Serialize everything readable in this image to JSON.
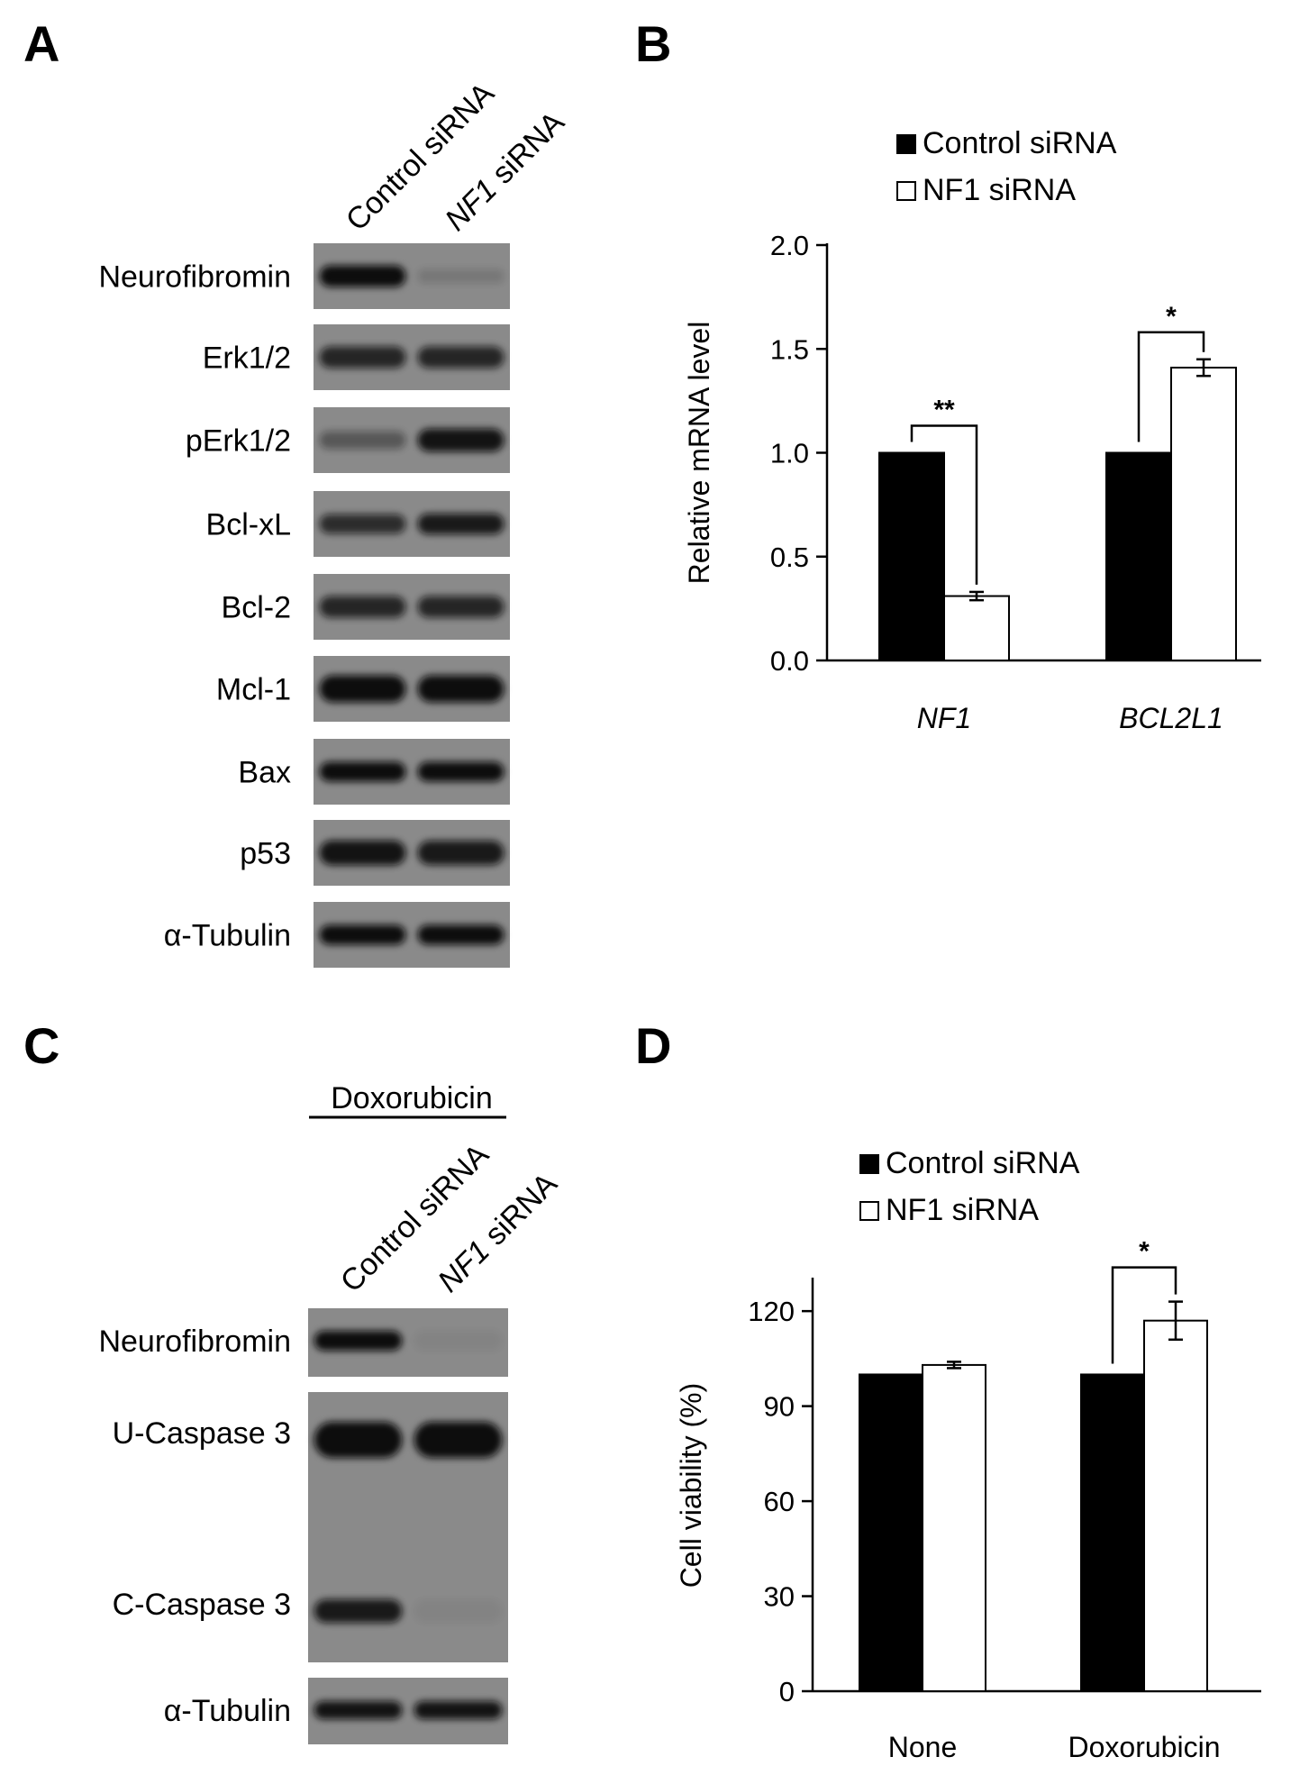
{
  "panels": {
    "A": {
      "letter": "A",
      "lanes": [
        {
          "text": "Control siRNA",
          "italic_part": ""
        },
        {
          "text": " siRNA",
          "italic_part": "NF1"
        }
      ],
      "blots": [
        {
          "label": "Neurofibromin",
          "lane1": 1.0,
          "lane2": 0.15
        },
        {
          "label": "Erk1/2",
          "lane1": 0.8,
          "lane2": 0.8
        },
        {
          "label": "pErk1/2",
          "lane1": 0.4,
          "lane2": 0.95
        },
        {
          "label": "Bcl-xL",
          "lane1": 0.75,
          "lane2": 0.9
        },
        {
          "label": "Bcl-2",
          "lane1": 0.8,
          "lane2": 0.8
        },
        {
          "label": "Mcl-1",
          "lane1": 1.0,
          "lane2": 1.0
        },
        {
          "label": "Bax",
          "lane1": 1.0,
          "lane2": 1.0
        },
        {
          "label": "p53",
          "lane1": 0.95,
          "lane2": 0.9
        },
        {
          "label": "α-Tubulin",
          "lane1": 1.0,
          "lane2": 1.0
        }
      ]
    },
    "B": {
      "letter": "B"
    },
    "C": {
      "letter": "C",
      "treatment": "Doxorubicin",
      "lanes": [
        {
          "text": "Control siRNA",
          "italic_part": ""
        },
        {
          "text": " siRNA",
          "italic_part": "NF1"
        }
      ],
      "blots": [
        {
          "label": "Neurofibromin",
          "lane1": 1.0,
          "lane2": 0.05
        },
        {
          "label": "U-Caspase 3",
          "lane1": 1.0,
          "lane2": 1.0
        },
        {
          "label": "C-Caspase 3",
          "lane1": 0.9,
          "lane2": 0.05
        },
        {
          "label": "α-Tubulin",
          "lane1": 0.95,
          "lane2": 0.95
        }
      ]
    },
    "D": {
      "letter": "D"
    }
  },
  "colors": {
    "control": "#000000",
    "nf1": "#ffffff",
    "blot_bg": "#8a8a8a"
  },
  "chart_data": [
    {
      "panel": "B",
      "type": "bar",
      "categories": [
        "NF1",
        "BCL2L1"
      ],
      "series": [
        {
          "name": "Control siRNA",
          "values": [
            1.0,
            1.0
          ]
        },
        {
          "name": "NF1 siRNA",
          "values": [
            0.31,
            1.41
          ],
          "errors": [
            0.02,
            0.04
          ]
        }
      ],
      "xlabel": "",
      "ylabel": "Relative mRNA level",
      "ylim": [
        0,
        2.0
      ],
      "yticks": [
        "0.0",
        "0.5",
        "1.0",
        "1.5",
        "2.0"
      ],
      "significance": [
        "**",
        "*"
      ],
      "legend_position": "top-left"
    },
    {
      "panel": "D",
      "type": "bar",
      "categories": [
        "None",
        "Doxorubicin"
      ],
      "series": [
        {
          "name": "Control siRNA",
          "values": [
            100,
            100
          ]
        },
        {
          "name": "NF1 siRNA",
          "values": [
            103,
            117
          ],
          "errors": [
            1,
            6
          ]
        }
      ],
      "xlabel": "",
      "ylabel": "Cell viability (%)",
      "ylim": [
        0,
        130
      ],
      "yticks": [
        "0",
        "30",
        "60",
        "90",
        "120"
      ],
      "significance": [
        "",
        "*"
      ],
      "legend_position": "top-left"
    }
  ]
}
